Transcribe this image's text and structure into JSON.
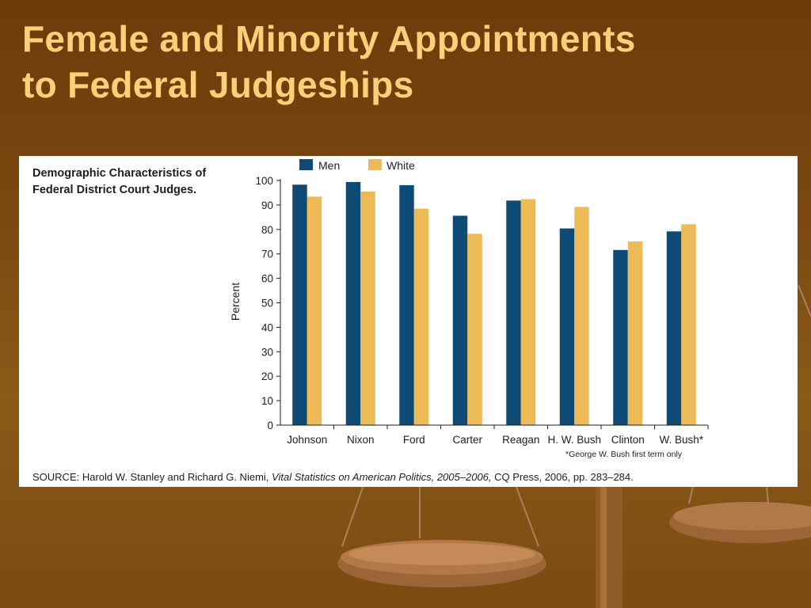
{
  "slide": {
    "title_line1": "Female and Minority Appointments",
    "title_line2": "to Federal Judgeships"
  },
  "panel": {
    "heading_line1": "Demographic Characteristics of",
    "heading_line2": "Federal District Court Judges.",
    "footnote": "*George W. Bush first term only",
    "source_label": "SOURCE:",
    "source_authors": "Harold W. Stanley and Richard G. Niemi,",
    "source_book": "Vital Statistics on American Politics, 2005–2006,",
    "source_rest": "CQ Press, 2006, pp. 283–284."
  },
  "colors": {
    "men": "#0f4a75",
    "white": "#ecbb58",
    "title": "#fcd078"
  },
  "chart_data": {
    "type": "bar",
    "categories": [
      "Johnson",
      "Nixon",
      "Ford",
      "Carter",
      "Reagan",
      "H. W. Bush",
      "Clinton",
      "W. Bush*"
    ],
    "series": [
      {
        "name": "Men",
        "values": [
          98.3,
          99.4,
          98.1,
          85.6,
          91.8,
          80.4,
          71.6,
          79.2
        ]
      },
      {
        "name": "White",
        "values": [
          93.4,
          95.5,
          88.5,
          78.2,
          92.4,
          89.2,
          75.1,
          82.1
        ]
      }
    ],
    "ylabel": "Percent",
    "xlabel": "",
    "ylim": [
      0,
      100
    ],
    "yticks": [
      0,
      10,
      20,
      30,
      40,
      50,
      60,
      70,
      80,
      90,
      100
    ],
    "grid": false,
    "legend": "top"
  }
}
